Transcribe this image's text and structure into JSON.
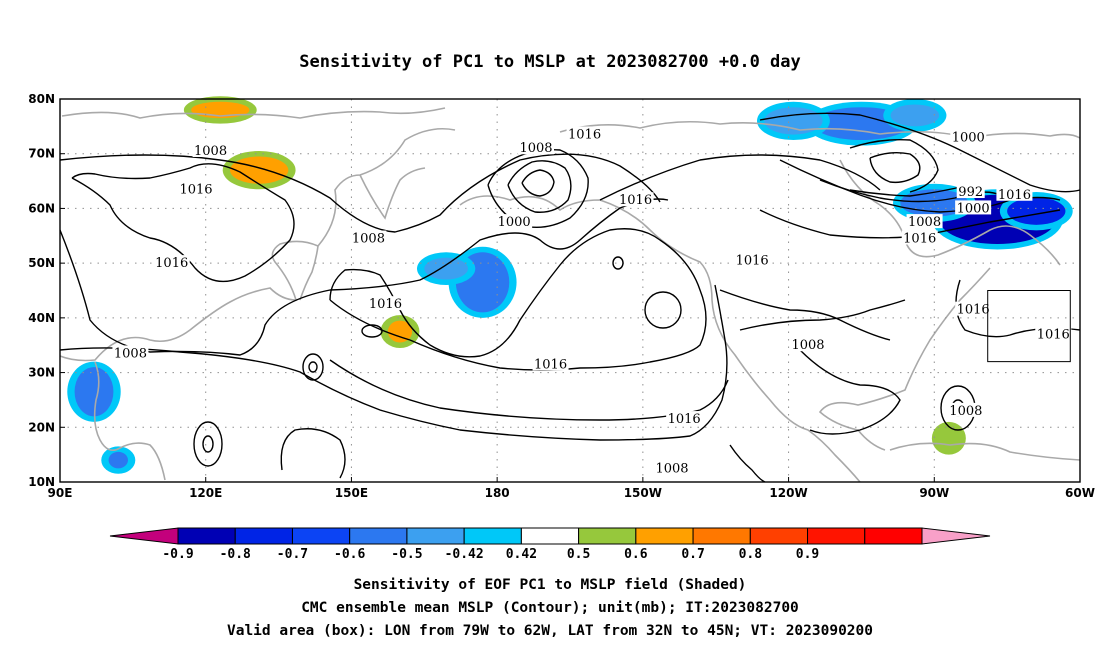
{
  "title": "Sensitivity of PC1 to MSLP at 2023082700 +0.0 day",
  "map": {
    "lon_range": [
      "90E",
      "60W"
    ],
    "lat_range": [
      "10N",
      "80N"
    ],
    "x_ticks": [
      "90E",
      "120E",
      "150E",
      "180",
      "150W",
      "120W",
      "90W",
      "60W"
    ],
    "y_ticks": [
      "80N",
      "70N",
      "60N",
      "50N",
      "40N",
      "30N",
      "20N",
      "10N"
    ],
    "grid": "dotted"
  },
  "contours": {
    "unit": "mb",
    "labels": [
      {
        "text": "1016",
        "lon": 198,
        "lat": 73.5
      },
      {
        "text": "1000",
        "lon": 277,
        "lat": 73
      },
      {
        "text": "1008",
        "lon": 121,
        "lat": 70.5
      },
      {
        "text": "1008",
        "lon": 188,
        "lat": 71
      },
      {
        "text": "1016",
        "lon": 118,
        "lat": 63.5
      },
      {
        "text": "992",
        "lon": 277.5,
        "lat": 63
      },
      {
        "text": "1016",
        "lon": 286.5,
        "lat": 62.5
      },
      {
        "text": "1016",
        "lon": 208.5,
        "lat": 61.5
      },
      {
        "text": "1000",
        "lon": 278,
        "lat": 60
      },
      {
        "text": "1000",
        "lon": 183.5,
        "lat": 57.5
      },
      {
        "text": "1008",
        "lon": 268,
        "lat": 57.5
      },
      {
        "text": "1016",
        "lon": 267,
        "lat": 54.5
      },
      {
        "text": "1008",
        "lon": 153.5,
        "lat": 54.5
      },
      {
        "text": "1016",
        "lon": 113,
        "lat": 50
      },
      {
        "text": "1016",
        "lon": 232.5,
        "lat": 50.5
      },
      {
        "text": "1016",
        "lon": 157,
        "lat": 42.5
      },
      {
        "text": "1016",
        "lon": 278,
        "lat": 41.5
      },
      {
        "text": "1016",
        "lon": 294.5,
        "lat": 37
      },
      {
        "text": "1008",
        "lon": 104.5,
        "lat": 33.5
      },
      {
        "text": "1008",
        "lon": 244,
        "lat": 35
      },
      {
        "text": "1016",
        "lon": 191,
        "lat": 31.5
      },
      {
        "text": "1016",
        "lon": 218.5,
        "lat": 21.5
      },
      {
        "text": "1008",
        "lon": 276.5,
        "lat": 23
      },
      {
        "text": "1008",
        "lon": 216,
        "lat": 12.5
      }
    ]
  },
  "shading": {
    "variable": "Sensitivity of EOF PC1",
    "blobs": [
      {
        "lon": 283,
        "lat": 58,
        "rx": 12,
        "ry": 4.5,
        "value": -0.9
      },
      {
        "lon": 291,
        "lat": 59.5,
        "rx": 6,
        "ry": 2.5,
        "value": -0.8
      },
      {
        "lon": 270,
        "lat": 61,
        "rx": 7,
        "ry": 2.5,
        "value": -0.6
      },
      {
        "lon": 255,
        "lat": 75.5,
        "rx": 10,
        "ry": 3,
        "value": -0.6
      },
      {
        "lon": 241,
        "lat": 76,
        "rx": 6,
        "ry": 2.5,
        "value": -0.5
      },
      {
        "lon": 266,
        "lat": 77,
        "rx": 5,
        "ry": 2,
        "value": -0.5
      },
      {
        "lon": 177,
        "lat": 46.5,
        "rx": 5.5,
        "ry": 5.5,
        "value": -0.6
      },
      {
        "lon": 169.5,
        "lat": 49,
        "rx": 4.5,
        "ry": 2,
        "value": -0.5
      },
      {
        "lon": 97,
        "lat": 26.5,
        "rx": 4,
        "ry": 4.5,
        "value": -0.6
      },
      {
        "lon": 102,
        "lat": 14,
        "rx": 2,
        "ry": 1.5,
        "value": -0.6
      },
      {
        "lon": 123,
        "lat": 78,
        "rx": 6,
        "ry": 1.5,
        "value": 0.6
      },
      {
        "lon": 131,
        "lat": 67,
        "rx": 6,
        "ry": 2.5,
        "value": 0.6
      },
      {
        "lon": 160,
        "lat": 37.5,
        "rx": 2.5,
        "ry": 2,
        "value": 0.6
      },
      {
        "lon": 273,
        "lat": 18,
        "rx": 2,
        "ry": 2,
        "value": 0.5
      }
    ]
  },
  "valid_box": {
    "lon_min": 281,
    "lon_max": 298,
    "lat_min": 32,
    "lat_max": 45
  },
  "colorbar": {
    "colors": [
      "#c3007c",
      "#0000b4",
      "#0024e6",
      "#0c44f4",
      "#2c78f0",
      "#3ca0f0",
      "#00c8f8",
      "#ffffff",
      "#96c83c",
      "#ffa000",
      "#ff7800",
      "#ff4000",
      "#ff1400",
      "#ff0000",
      "#f8a0c8"
    ],
    "labels": [
      "-0.9",
      "-0.8",
      "-0.7",
      "-0.6",
      "-0.5",
      "-0.42",
      "0.42",
      "0.5",
      "0.6",
      "0.7",
      "0.8",
      "0.9"
    ]
  },
  "caption": {
    "line1": "Sensitivity of EOF PC1 to MSLP field (Shaded)",
    "line2": "CMC ensemble mean MSLP (Contour); unit(mb); IT:2023082700",
    "line3": "Valid area (box): LON from 79W to 62W, LAT from 32N to 45N; VT: 2023090200"
  }
}
